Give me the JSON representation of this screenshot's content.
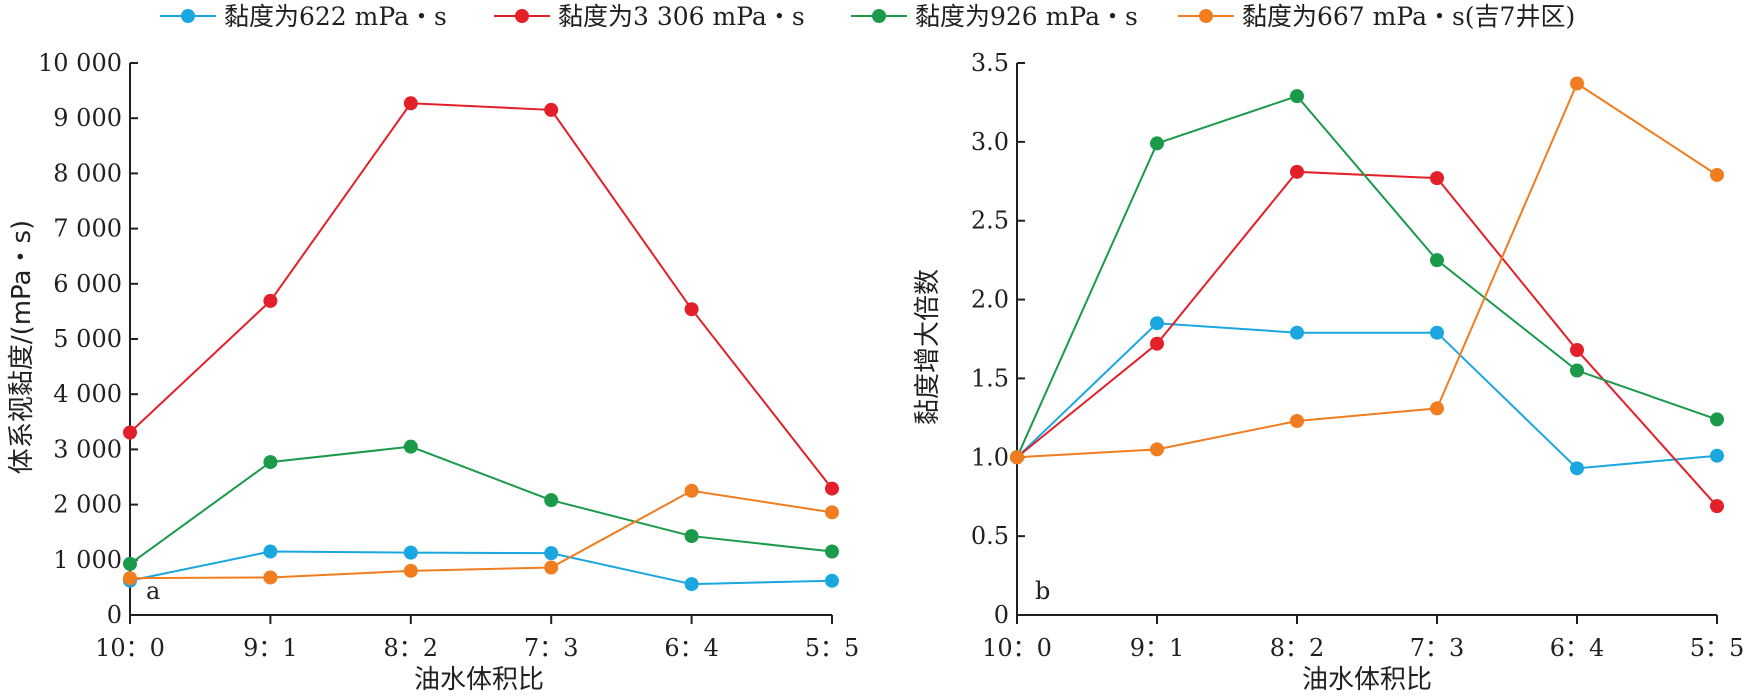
{
  "legend": [
    {
      "label": "黏度为622 mPa・s",
      "color": "#1aa7e0"
    },
    {
      "label": "黏度为3 306 mPa・s",
      "color": "#e3202a"
    },
    {
      "label": "黏度为926 mPa・s",
      "color": "#1a9a4a"
    },
    {
      "label": "黏度为667 mPa・s(吉7井区)",
      "color": "#f07d1f"
    }
  ],
  "chart_data": [
    {
      "type": "line",
      "panel_label": "a",
      "xlabel": "油水体积比",
      "ylabel": "体系视黏度/(mPa・s)",
      "categories": [
        "10：0",
        "9：1",
        "8：2",
        "7：3",
        "6：4",
        "5：5"
      ],
      "ylim": [
        0,
        10000
      ],
      "yticks": [
        0,
        1000,
        2000,
        3000,
        4000,
        5000,
        6000,
        7000,
        8000,
        9000,
        10000
      ],
      "ytick_labels": [
        "0",
        "1 000",
        "2 000",
        "3 000",
        "4 000",
        "5 000",
        "6 000",
        "7 000",
        "8 000",
        "9 000",
        "10 000"
      ],
      "grid": false,
      "series": [
        {
          "name": "黏度为622 mPa・s",
          "color": "#1aa7e0",
          "values": [
            622,
            1150,
            1130,
            1120,
            560,
            620
          ]
        },
        {
          "name": "黏度为3 306 mPa・s",
          "color": "#e3202a",
          "values": [
            3306,
            5690,
            9270,
            9150,
            5540,
            2290
          ]
        },
        {
          "name": "黏度为926 mPa・s",
          "color": "#1a9a4a",
          "values": [
            926,
            2770,
            3050,
            2080,
            1430,
            1150
          ]
        },
        {
          "name": "黏度为667 mPa・s(吉7井区)",
          "color": "#f07d1f",
          "values": [
            667,
            680,
            800,
            860,
            2250,
            1860
          ]
        }
      ]
    },
    {
      "type": "line",
      "panel_label": "b",
      "xlabel": "油水体积比",
      "ylabel": "黏度增大倍数",
      "categories": [
        "10：0",
        "9：1",
        "8：2",
        "7：3",
        "6：4",
        "5：5"
      ],
      "ylim": [
        0,
        3.5
      ],
      "yticks": [
        0,
        0.5,
        1.0,
        1.5,
        2.0,
        2.5,
        3.0,
        3.5
      ],
      "ytick_labels": [
        "0",
        "0.5",
        "1.0",
        "1.5",
        "2.0",
        "2.5",
        "3.0",
        "3.5"
      ],
      "grid": false,
      "series": [
        {
          "name": "黏度为622 mPa・s",
          "color": "#1aa7e0",
          "values": [
            1.0,
            1.85,
            1.79,
            1.79,
            0.93,
            1.01
          ]
        },
        {
          "name": "黏度为3 306 mPa・s",
          "color": "#e3202a",
          "values": [
            1.0,
            1.72,
            2.81,
            2.77,
            1.68,
            0.69
          ]
        },
        {
          "name": "黏度为926 mPa・s",
          "color": "#1a9a4a",
          "values": [
            1.0,
            2.99,
            3.29,
            2.25,
            1.55,
            1.24
          ]
        },
        {
          "name": "黏度为667 mPa・s(吉7井区)",
          "color": "#f07d1f",
          "values": [
            1.0,
            1.05,
            1.23,
            1.31,
            3.37,
            2.79
          ]
        }
      ]
    }
  ]
}
